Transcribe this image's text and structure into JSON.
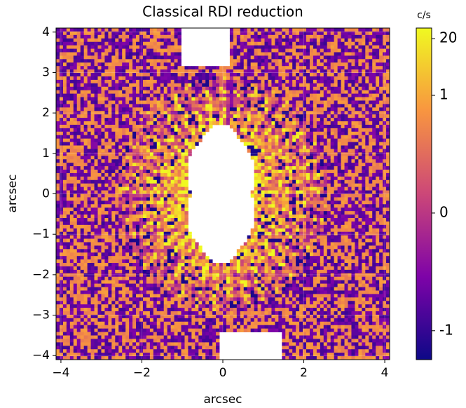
{
  "chart_data": {
    "type": "image",
    "title": "Classical RDI reduction",
    "xlabel": "arcsec",
    "ylabel": "arcsec",
    "xlim": [
      -4.12,
      4.12
    ],
    "ylim": [
      -4.1,
      4.1
    ],
    "xticks": [
      {
        "value": -4,
        "label": "−4"
      },
      {
        "value": -2,
        "label": "−2"
      },
      0,
      2,
      4
    ],
    "yticks": [
      {
        "value": -4,
        "label": "−4"
      },
      {
        "value": -3,
        "label": "−3"
      },
      {
        "value": -2,
        "label": "−2"
      },
      {
        "value": -1,
        "label": "−1"
      },
      0,
      1,
      2,
      3,
      4
    ],
    "grid": true,
    "colormap": "plasma",
    "colorbar": {
      "label": "c/s",
      "scale": "asinh",
      "linear_width": 0.004,
      "clim": [
        -4.6,
        35
      ],
      "ticks": [
        20,
        1,
        0,
        -1
      ]
    }
  }
}
